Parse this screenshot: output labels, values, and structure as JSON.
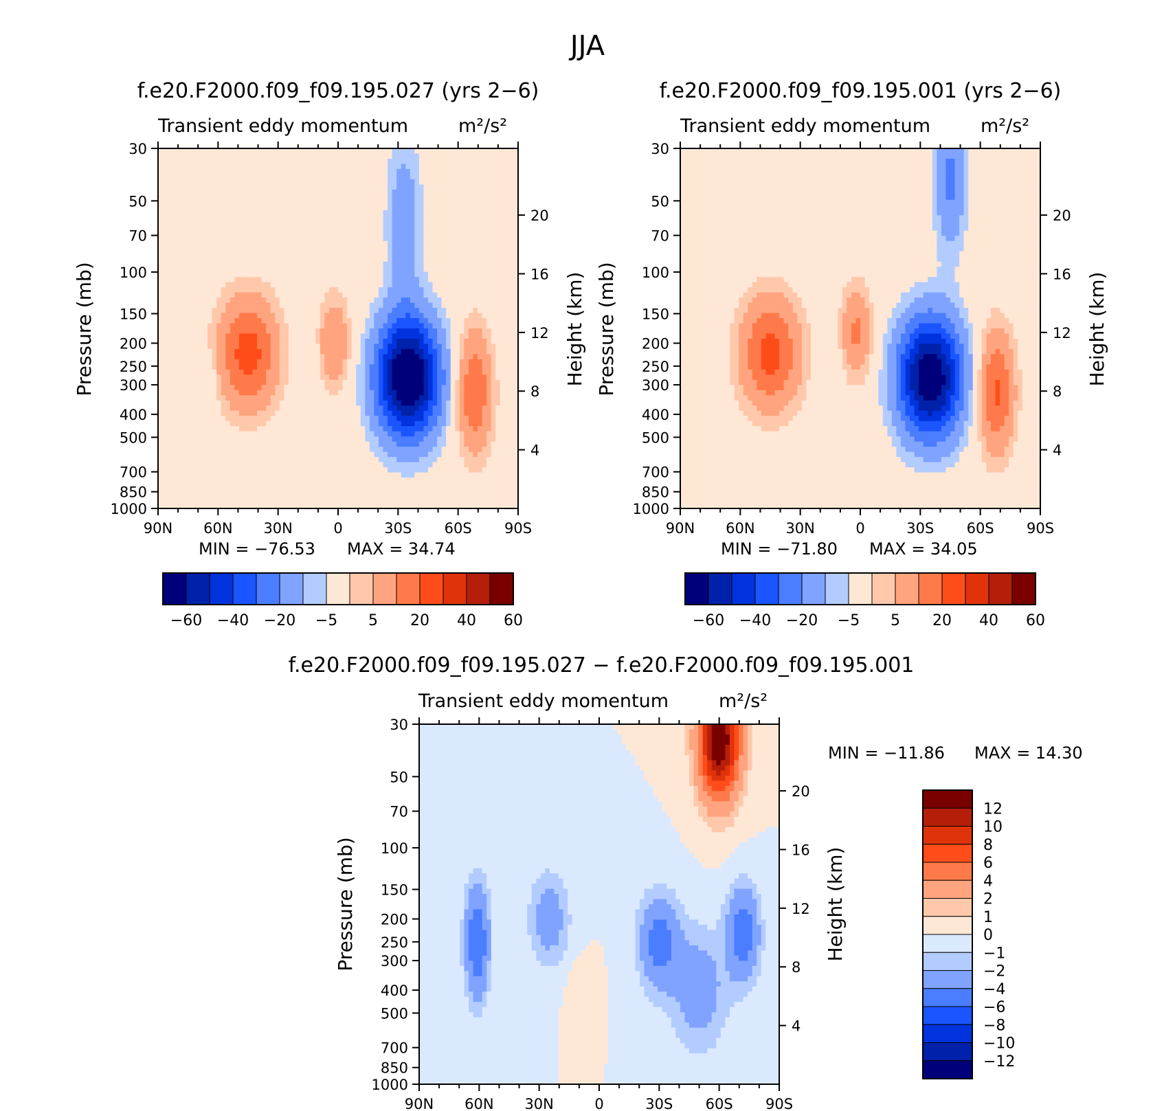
{
  "figure_title": "JJA",
  "chart_data": [
    {
      "type": "contour",
      "title": "f.e20.F2000.f09_f09.195.027 (yrs 2−6)",
      "subtitle": "Transient eddy momentum",
      "units": "m²/s²",
      "ylabel": "Pressure (mb)",
      "ylabel_right": "Height (km)",
      "x_ticks": [
        "90N",
        "60N",
        "30N",
        "0",
        "30S",
        "60S",
        "90S"
      ],
      "y_ticks": [
        30,
        50,
        70,
        100,
        150,
        200,
        250,
        300,
        400,
        500,
        700,
        850,
        1000
      ],
      "height_ticks": [
        4,
        8,
        12,
        16,
        20
      ],
      "ylim": [
        1000,
        30
      ],
      "xlim": [
        90,
        -90
      ],
      "min_label": "MIN = −76.53",
      "max_label": "MAX = 34.74",
      "min": -76.53,
      "max": 34.74,
      "colorbar": {
        "orientation": "horizontal",
        "labels": [
          "−60",
          "−40",
          "−20",
          "−5",
          "5",
          "20",
          "40",
          "60"
        ],
        "levels": [
          -70,
          -60,
          -50,
          -40,
          -30,
          -20,
          -10,
          -5,
          5,
          10,
          20,
          30,
          40,
          50,
          60,
          70
        ]
      },
      "features": [
        {
          "lat": -35,
          "p": 280,
          "value": -76.5,
          "lon_w": 16,
          "p_w": 0.58
        },
        {
          "lat": -33,
          "p": 60,
          "value": -15,
          "lon_w": 9,
          "p_w": 0.85
        },
        {
          "lat": 45,
          "p": 220,
          "value": 34.7,
          "lon_w": 15,
          "p_w": 0.55
        },
        {
          "lat": 2,
          "p": 200,
          "value": 20,
          "lon_w": 8,
          "p_w": 0.45
        },
        {
          "lat": -68,
          "p": 320,
          "value": 30,
          "lon_w": 9,
          "p_w": 0.6
        },
        {
          "lat": 65,
          "p": 300,
          "value": -7,
          "lon_w": 5,
          "p_w": 0.3
        },
        {
          "lat": 15,
          "p": 250,
          "value": -5,
          "lon_w": 6,
          "p_w": 0.5
        }
      ]
    },
    {
      "type": "contour",
      "title": "f.e20.F2000.f09_f09.195.001 (yrs 2−6)",
      "subtitle": "Transient eddy momentum",
      "units": "m²/s²",
      "ylabel": "Pressure (mb)",
      "ylabel_right": "Height (km)",
      "x_ticks": [
        "90N",
        "60N",
        "30N",
        "0",
        "30S",
        "60S",
        "90S"
      ],
      "y_ticks": [
        30,
        50,
        70,
        100,
        150,
        200,
        250,
        300,
        400,
        500,
        700,
        850,
        1000
      ],
      "height_ticks": [
        4,
        8,
        12,
        16,
        20
      ],
      "ylim": [
        1000,
        30
      ],
      "xlim": [
        90,
        -90
      ],
      "min_label": "MIN = −71.80",
      "max_label": "MAX = 34.05",
      "min": -71.8,
      "max": 34.05,
      "colorbar": {
        "orientation": "horizontal",
        "labels": [
          "−60",
          "−40",
          "−20",
          "−5",
          "5",
          "20",
          "40",
          "60"
        ],
        "levels": [
          -70,
          -60,
          -50,
          -40,
          -30,
          -20,
          -10,
          -5,
          5,
          10,
          20,
          30,
          40,
          50,
          60,
          70
        ]
      },
      "features": [
        {
          "lat": -35,
          "p": 280,
          "value": -71.8,
          "lon_w": 16,
          "p_w": 0.58
        },
        {
          "lat": -45,
          "p": 40,
          "value": -22,
          "lon_w": 8,
          "p_w": 0.7
        },
        {
          "lat": 45,
          "p": 220,
          "value": 34.0,
          "lon_w": 15,
          "p_w": 0.55
        },
        {
          "lat": 2,
          "p": 180,
          "value": 22,
          "lon_w": 8,
          "p_w": 0.45
        },
        {
          "lat": -68,
          "p": 320,
          "value": 32,
          "lon_w": 9,
          "p_w": 0.6
        },
        {
          "lat": 15,
          "p": 250,
          "value": -5,
          "lon_w": 6,
          "p_w": 0.5
        }
      ]
    },
    {
      "type": "contour",
      "title": "f.e20.F2000.f09_f09.195.027 − f.e20.F2000.f09_f09.195.001",
      "subtitle": "Transient eddy momentum",
      "units": "m²/s²",
      "ylabel": "Pressure (mb)",
      "ylabel_right": "Height (km)",
      "x_ticks": [
        "90N",
        "60N",
        "30N",
        "0",
        "30S",
        "60S",
        "90S"
      ],
      "y_ticks": [
        30,
        50,
        70,
        100,
        150,
        200,
        250,
        300,
        400,
        500,
        700,
        850,
        1000
      ],
      "height_ticks": [
        4,
        8,
        12,
        16,
        20
      ],
      "ylim": [
        1000,
        30
      ],
      "xlim": [
        90,
        -90
      ],
      "min_label": "MIN = −11.86",
      "max_label": "MAX = 14.30",
      "min": -11.86,
      "max": 14.3,
      "colorbar": {
        "orientation": "vertical",
        "labels": [
          "12",
          "10",
          "8",
          "6",
          "4",
          "2",
          "1",
          "0",
          "−1",
          "−2",
          "−4",
          "−6",
          "−8",
          "−10",
          "−12"
        ],
        "levels": [
          -14,
          -12,
          -10,
          -8,
          -6,
          -4,
          -2,
          -1,
          0,
          1,
          2,
          4,
          6,
          8,
          10,
          12,
          14
        ]
      },
      "features": [
        {
          "lat": -60,
          "p": 35,
          "value": 14.3,
          "lon_w": 10,
          "p_w": 0.55
        },
        {
          "lat": 61,
          "p": 250,
          "value": -6,
          "lon_w": 6,
          "p_w": 0.55
        },
        {
          "lat": -72,
          "p": 230,
          "value": -5.5,
          "lon_w": 8,
          "p_w": 0.45
        },
        {
          "lat": -30,
          "p": 250,
          "value": -5,
          "lon_w": 10,
          "p_w": 0.45
        },
        {
          "lat": 25,
          "p": 200,
          "value": -3,
          "lon_w": 10,
          "p_w": 0.45
        },
        {
          "lat": -50,
          "p": 400,
          "value": -3,
          "lon_w": 14,
          "p_w": 0.6
        },
        {
          "lat": 10,
          "p": 400,
          "value": 0.8,
          "lon_w": 6,
          "p_w": 0.3
        }
      ]
    }
  ]
}
